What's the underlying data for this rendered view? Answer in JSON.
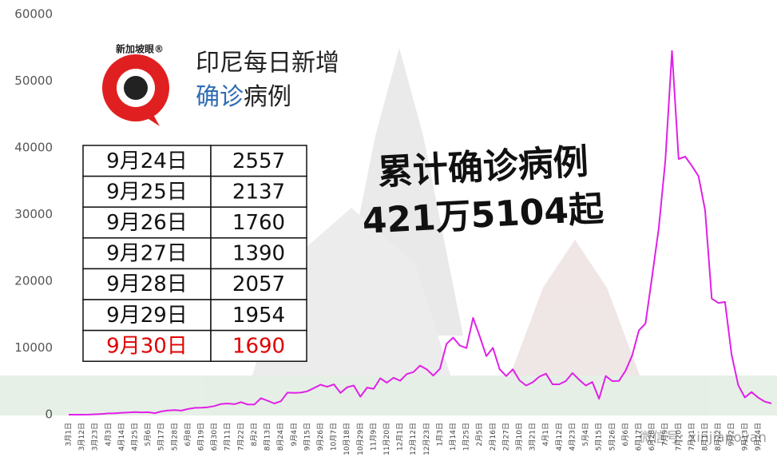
{
  "chart_data": {
    "type": "line",
    "color": "#e020e8",
    "categories": [
      "3月1日",
      null,
      "3月12日",
      null,
      "3月23日",
      null,
      "4月3日",
      null,
      "4月14日",
      null,
      "4月25日",
      null,
      "5月6日",
      null,
      "5月17日",
      null,
      "5月28日",
      null,
      "6月8日",
      null,
      "6月19日",
      null,
      "6月30日",
      null,
      "7月11日",
      null,
      "7月22日",
      null,
      "8月2日",
      null,
      "8月13日",
      null,
      "8月24日",
      null,
      "9月4日",
      null,
      "9月15日",
      null,
      "9月26日",
      null,
      "10月7日",
      null,
      "10月18日",
      null,
      "10月29日",
      null,
      "11月9日",
      null,
      "11月20日",
      null,
      "12月1日",
      null,
      "12月12日",
      null,
      "12月23日",
      null,
      "1月3日",
      null,
      "1月14日",
      null,
      "1月25日",
      null,
      "2月5日",
      null,
      "2月16日",
      null,
      "2月27日",
      null,
      "3月10日",
      null,
      "3月21日",
      null,
      "4月1日",
      null,
      "4月12日",
      null,
      "4月23日",
      null,
      "5月4日",
      null,
      "5月15日",
      null,
      "5月26日",
      null,
      "6月6日",
      null,
      "6月17日",
      null,
      "6月28日",
      null,
      "7月9日",
      null,
      "7月20日",
      null,
      "7月31日",
      null,
      "8月11日",
      null,
      "8月22日",
      null,
      "9月2日",
      null,
      "9月13日",
      null,
      "9月24日",
      null,
      null
    ],
    "values": [
      0,
      2,
      0,
      17,
      65,
      109,
      196,
      218,
      282,
      327,
      396,
      347,
      367,
      233,
      489,
      634,
      687,
      609,
      847,
      1014,
      1041,
      1113,
      1293,
      1607,
      1671,
      1574,
      1882,
      1525,
      1519,
      2473,
      2098,
      1673,
      2006,
      3308,
      3269,
      3307,
      3507,
      3989,
      4494,
      4174,
      4538,
      3267,
      4105,
      4369,
      2696,
      4065,
      3880,
      5444,
      4792,
      5534,
      5092,
      6089,
      6388,
      7354,
      6808,
      5854,
      6877,
      10617,
      11557,
      10365,
      9994,
      14518,
      11749,
      8776,
      10029,
      6828,
      5785,
      6808,
      5144,
      4366,
      4852,
      5701,
      6142,
      4549,
      4549,
      5041,
      6243,
      5241,
      4369,
      4891,
      2385,
      5797,
      5034,
      5060,
      6594,
      8892,
      12624,
      13668,
      20694,
      27913,
      38124,
      54517,
      38325,
      38679,
      37284,
      35764,
      30625,
      17384,
      16744,
      16899,
      8955,
      4413,
      2577,
      3385,
      2557,
      1954,
      1690
    ],
    "ylim": [
      0,
      60000
    ],
    "yticks": [
      0,
      10000,
      20000,
      30000,
      40000,
      50000,
      60000
    ]
  },
  "logo": "新加坡眼®",
  "title": {
    "line1": "印尼每日新增",
    "line2_highlight": "确诊",
    "line2_rest": "病例",
    "highlight_color": "#2e6db4"
  },
  "headline": {
    "line1": "累计确诊病例",
    "line2": "421万5104起"
  },
  "table": {
    "rows": [
      [
        "9月24日",
        "2557"
      ],
      [
        "9月25日",
        "2137"
      ],
      [
        "9月26日",
        "1760"
      ],
      [
        "9月27日",
        "1390"
      ],
      [
        "9月28日",
        "2057"
      ],
      [
        "9月29日",
        "1954"
      ],
      [
        "9月30日",
        "1690"
      ]
    ],
    "highlight_row": 6,
    "highlight_color": "#e00000"
  },
  "watermark": "微信号: xinjiapoyan"
}
